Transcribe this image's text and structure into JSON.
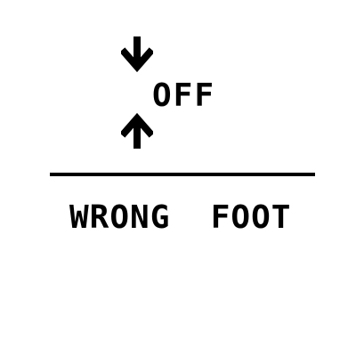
{
  "puzzle": {
    "top_word": "OFF",
    "bottom_phrase": "WRONG  FOOT"
  },
  "icons": {
    "top_arrow": "arrow-down-icon",
    "bottom_arrow": "arrow-up-icon"
  },
  "colors": {
    "foreground": "#000000",
    "background": "#ffffff"
  }
}
